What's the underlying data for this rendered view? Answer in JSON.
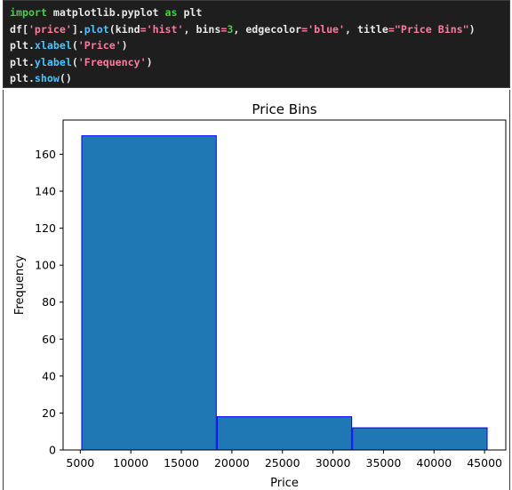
{
  "code_cell": {
    "lines": [
      [
        {
          "t": "import",
          "c": "kw"
        },
        {
          "t": " matplotlib.pyplot ",
          "c": "plain"
        },
        {
          "t": "as",
          "c": "kw"
        },
        {
          "t": " plt",
          "c": "plain"
        }
      ],
      [
        {
          "t": "df[",
          "c": "plain"
        },
        {
          "t": "'price'",
          "c": "str"
        },
        {
          "t": "].",
          "c": "plain"
        },
        {
          "t": "plot",
          "c": "fn"
        },
        {
          "t": "(kind",
          "c": "plain"
        },
        {
          "t": "=",
          "c": "op"
        },
        {
          "t": "'hist'",
          "c": "str"
        },
        {
          "t": ", bins",
          "c": "plain"
        },
        {
          "t": "=",
          "c": "op"
        },
        {
          "t": "3",
          "c": "num"
        },
        {
          "t": ", edgecolor",
          "c": "plain"
        },
        {
          "t": "=",
          "c": "op"
        },
        {
          "t": "'blue'",
          "c": "str"
        },
        {
          "t": ", title",
          "c": "plain"
        },
        {
          "t": "=",
          "c": "op"
        },
        {
          "t": "\"Price Bins\"",
          "c": "str"
        },
        {
          "t": ")",
          "c": "plain"
        }
      ],
      [
        {
          "t": "plt.",
          "c": "plain"
        },
        {
          "t": "xlabel",
          "c": "fn"
        },
        {
          "t": "(",
          "c": "plain"
        },
        {
          "t": "'Price'",
          "c": "str"
        },
        {
          "t": ")",
          "c": "plain"
        }
      ],
      [
        {
          "t": "plt.",
          "c": "plain"
        },
        {
          "t": "ylabel",
          "c": "fn"
        },
        {
          "t": "(",
          "c": "plain"
        },
        {
          "t": "'Frequency'",
          "c": "str"
        },
        {
          "t": ")",
          "c": "plain"
        }
      ],
      [
        {
          "t": "plt.",
          "c": "plain"
        },
        {
          "t": "show",
          "c": "fn"
        },
        {
          "t": "()",
          "c": "plain"
        }
      ]
    ]
  },
  "chart_data": {
    "type": "bar",
    "title": "Price Bins",
    "xlabel": "Price",
    "ylabel": "Frequency",
    "bins": [
      {
        "x0": 5100,
        "x1": 18500,
        "value": 170
      },
      {
        "x0": 18500,
        "x1": 31900,
        "value": 18
      },
      {
        "x0": 31900,
        "x1": 45300,
        "value": 12
      }
    ],
    "xlim": [
      3300,
      47100
    ],
    "ylim": [
      0,
      178.5
    ],
    "xticks": [
      5000,
      10000,
      15000,
      20000,
      25000,
      30000,
      35000,
      40000,
      45000
    ],
    "xtick_labels": [
      "5000",
      "10000",
      "15000",
      "20000",
      "25000",
      "30000",
      "35000",
      "40000",
      "45000"
    ],
    "yticks": [
      0,
      20,
      40,
      60,
      80,
      100,
      120,
      140,
      160
    ],
    "ytick_labels": [
      "0",
      "20",
      "40",
      "60",
      "80",
      "100",
      "120",
      "140",
      "160"
    ],
    "bar_color": "#1f77b4",
    "edge_color": "#0000ff",
    "grid": false,
    "legend": "none"
  }
}
